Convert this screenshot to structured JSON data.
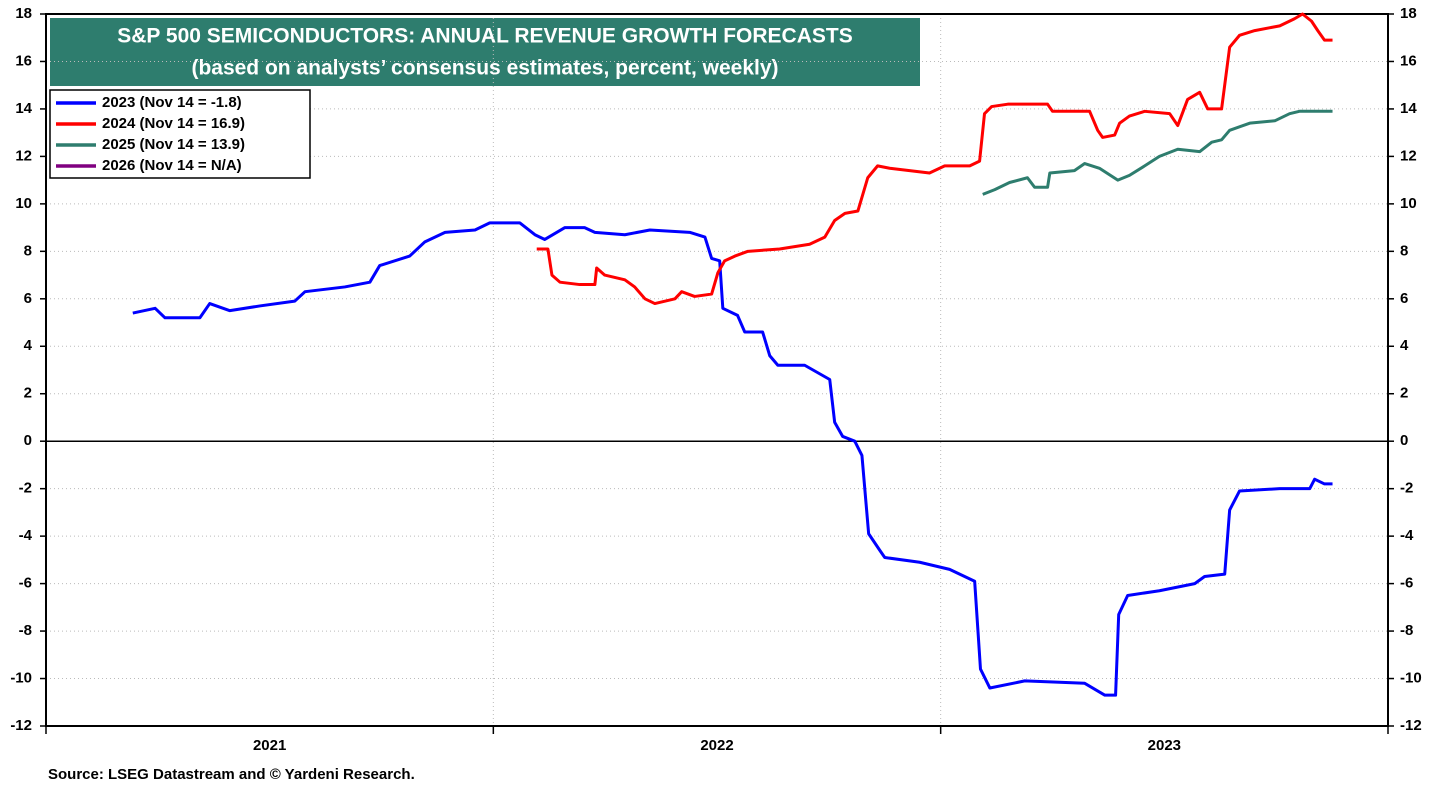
{
  "chart_data": {
    "type": "line",
    "title": "S&P 500 SEMICONDUCTORS: ANNUAL REVENUE GROWTH FORECASTS",
    "subtitle": "(based on analysts’ consensus estimates, percent, weekly)",
    "source": "Source: LSEG Datastream and © Yardeni Research.",
    "xlim": [
      2021,
      2024
    ],
    "xticks": [
      {
        "value": 2021.5,
        "label": "2021"
      },
      {
        "value": 2022.5,
        "label": "2022"
      },
      {
        "value": 2023.5,
        "label": "2023"
      }
    ],
    "xgrid": [
      2021,
      2022,
      2023,
      2024
    ],
    "ylim": [
      -12,
      18
    ],
    "yticks": [
      -12,
      -10,
      -8,
      -6,
      -4,
      -2,
      0,
      2,
      4,
      6,
      8,
      10,
      12,
      14,
      16,
      18
    ],
    "grid": true,
    "legend": "upper left",
    "series": [
      {
        "name": "2023 (Nov 14 = -1.8)",
        "color": "#0000ff",
        "x": [
          2021.194,
          2021.244,
          2021.266,
          2021.344,
          2021.366,
          2021.411,
          2021.478,
          2021.556,
          2021.579,
          2021.668,
          2021.724,
          2021.746,
          2021.813,
          2021.847,
          2021.892,
          2021.959,
          2021.992,
          2022.059,
          2022.093,
          2022.115,
          2022.16,
          2022.204,
          2022.227,
          2022.294,
          2022.35,
          2022.439,
          2022.473,
          2022.488,
          2022.506,
          2022.513,
          2022.546,
          2022.562,
          2022.602,
          2022.618,
          2022.636,
          2022.696,
          2022.752,
          2022.763,
          2022.781,
          2022.808,
          2022.824,
          2022.839,
          2022.864,
          2022.875,
          2022.953,
          2023.02,
          2023.076,
          2023.089,
          2023.11,
          2023.188,
          2023.322,
          2023.367,
          2023.391,
          2023.398,
          2023.418,
          2023.489,
          2023.568,
          2023.59,
          2023.635,
          2023.646,
          2023.668,
          2023.758,
          2023.825,
          2023.836,
          2023.858,
          2023.876
        ],
        "values": [
          5.4,
          5.6,
          5.2,
          5.2,
          5.8,
          5.5,
          5.7,
          5.9,
          6.3,
          6.5,
          6.7,
          7.4,
          7.8,
          8.4,
          8.8,
          8.9,
          9.2,
          9.2,
          8.7,
          8.5,
          9.0,
          9.0,
          8.8,
          8.7,
          8.9,
          8.8,
          8.6,
          7.7,
          7.6,
          5.6,
          5.3,
          4.6,
          4.6,
          3.6,
          3.2,
          3.2,
          2.6,
          0.8,
          0.2,
          0,
          -0.6,
          -3.9,
          -4.6,
          -4.9,
          -5.1,
          -5.4,
          -5.9,
          -9.6,
          -10.4,
          -10.1,
          -10.2,
          -10.7,
          -10.7,
          -7.3,
          -6.5,
          -6.3,
          -6.0,
          -5.7,
          -5.6,
          -2.9,
          -2.1,
          -2.0,
          -2.0,
          -1.6,
          -1.8,
          -1.8
        ]
      },
      {
        "name": "2024 (Nov 14 = 16.9)",
        "color": "#ff0000",
        "x": [
          2022.097,
          2022.122,
          2022.131,
          2022.149,
          2022.193,
          2022.227,
          2022.231,
          2022.249,
          2022.294,
          2022.316,
          2022.339,
          2022.361,
          2022.406,
          2022.421,
          2022.45,
          2022.488,
          2022.502,
          2022.517,
          2022.54,
          2022.569,
          2022.64,
          2022.707,
          2022.741,
          2022.763,
          2022.786,
          2022.815,
          2022.837,
          2022.859,
          2022.886,
          2022.975,
          2023.009,
          2023.065,
          2023.087,
          2023.098,
          2023.114,
          2023.15,
          2023.239,
          2023.25,
          2023.333,
          2023.351,
          2023.362,
          2023.389,
          2023.4,
          2023.422,
          2023.456,
          2023.512,
          2023.53,
          2023.552,
          2023.579,
          2023.597,
          2023.628,
          2023.646,
          2023.668,
          2023.702,
          2023.758,
          2023.791,
          2023.809,
          2023.829,
          2023.843,
          2023.858,
          2023.876
        ],
        "values": [
          8.1,
          8.1,
          7.0,
          6.7,
          6.6,
          6.6,
          7.3,
          7.0,
          6.8,
          6.5,
          6.0,
          5.8,
          6.0,
          6.3,
          6.1,
          6.2,
          7.1,
          7.6,
          7.8,
          8.0,
          8.1,
          8.3,
          8.6,
          9.3,
          9.6,
          9.7,
          11.1,
          11.6,
          11.5,
          11.3,
          11.6,
          11.6,
          11.8,
          13.8,
          14.1,
          14.2,
          14.2,
          13.9,
          13.9,
          13.1,
          12.8,
          12.9,
          13.4,
          13.7,
          13.9,
          13.8,
          13.3,
          14.4,
          14.7,
          14.0,
          14.0,
          16.6,
          17.1,
          17.3,
          17.5,
          17.8,
          18.0,
          17.7,
          17.3,
          16.9,
          16.9
        ]
      },
      {
        "name": "2025 (Nov 14 = 13.9)",
        "color": "#2e7d6e",
        "x": [
          2023.094,
          2023.121,
          2023.154,
          2023.194,
          2023.21,
          2023.239,
          2023.244,
          2023.299,
          2023.322,
          2023.355,
          2023.396,
          2023.422,
          2023.456,
          2023.489,
          2023.53,
          2023.579,
          2023.606,
          2023.628,
          2023.646,
          2023.691,
          2023.747,
          2023.78,
          2023.802,
          2023.876
        ],
        "values": [
          10.4,
          10.6,
          10.9,
          11.1,
          10.7,
          10.7,
          11.3,
          11.4,
          11.7,
          11.5,
          11.0,
          11.2,
          11.6,
          12.0,
          12.3,
          12.2,
          12.6,
          12.7,
          13.1,
          13.4,
          13.5,
          13.8,
          13.9,
          13.9
        ]
      },
      {
        "name": "2026 (Nov 14 = N/A)",
        "color": "#800080",
        "x": [],
        "values": []
      }
    ]
  }
}
